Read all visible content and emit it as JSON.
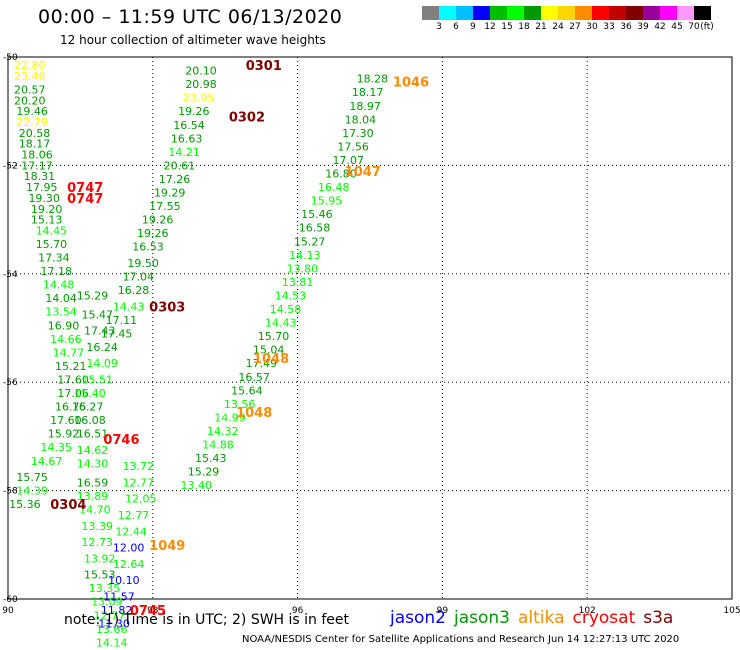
{
  "header": {
    "title": "00:00 – 11:59 UTC 06/13/2020",
    "subtitle": "12 hour collection of altimeter wave heights"
  },
  "colorbar": {
    "colors": [
      "#808080",
      "#00ffff",
      "#00bfff",
      "#0000ff",
      "#00bf00",
      "#00ff00",
      "#009900",
      "#ffff00",
      "#ffd700",
      "#ff8c00",
      "#ff0000",
      "#bf0000",
      "#800000",
      "#990099",
      "#ff00ff",
      "#ff99ff",
      "#000000"
    ],
    "labels": [
      "3",
      "6",
      "9",
      "12",
      "15",
      "18",
      "21",
      "24",
      "27",
      "30",
      "33",
      "36",
      "39",
      "42",
      "45",
      "70",
      "(ft)"
    ]
  },
  "footer": {
    "note": "note: 1) Time is in UTC; 2) SWH is in feet",
    "credit": "NOAA/NESDIS Center for Satellite Applications and Research    Jun 14 12:27:13 UTC 2020"
  },
  "legend": [
    {
      "name": "jason2",
      "color": "#0000ff"
    },
    {
      "name": "jason3",
      "color": "#009900"
    },
    {
      "name": "altika",
      "color": "#ff8c00"
    },
    {
      "name": "cryosat",
      "color": "#ff0000"
    },
    {
      "name": "s3a",
      "color": "#800000"
    }
  ],
  "chart_data": {
    "type": "scatter",
    "xlim": [
      90,
      105
    ],
    "ylim": [
      -60,
      -50
    ],
    "x_ticks": [
      "90",
      "93",
      "96",
      "99",
      "102",
      "105"
    ],
    "y_ticks": [
      "-50",
      "-52",
      "-54",
      "-56",
      "-58",
      "-60"
    ],
    "grid": true,
    "wave_heights": [
      {
        "x": 90.45,
        "y": -50.15,
        "v": "22.80",
        "c": "#ffff00"
      },
      {
        "x": 90.45,
        "y": -50.35,
        "v": "23.46",
        "c": "#ffff00"
      },
      {
        "x": 90.45,
        "y": -50.6,
        "v": "20.57",
        "c": "#009900"
      },
      {
        "x": 90.45,
        "y": -50.8,
        "v": "20.20",
        "c": "#009900"
      },
      {
        "x": 90.5,
        "y": -51.0,
        "v": "19.46",
        "c": "#009900"
      },
      {
        "x": 90.5,
        "y": -51.2,
        "v": "22.79",
        "c": "#ffff00"
      },
      {
        "x": 90.55,
        "y": -51.4,
        "v": "20.58",
        "c": "#009900"
      },
      {
        "x": 90.55,
        "y": -51.6,
        "v": "18.17",
        "c": "#009900"
      },
      {
        "x": 90.6,
        "y": -51.8,
        "v": "18.06",
        "c": "#009900"
      },
      {
        "x": 90.6,
        "y": -52.0,
        "v": "17.17",
        "c": "#009900"
      },
      {
        "x": 90.65,
        "y": -52.2,
        "v": "18.31",
        "c": "#009900"
      },
      {
        "x": 90.7,
        "y": -52.4,
        "v": "17.95",
        "c": "#009900"
      },
      {
        "x": 90.75,
        "y": -52.6,
        "v": "19.30",
        "c": "#009900"
      },
      {
        "x": 90.8,
        "y": -52.8,
        "v": "19.20",
        "c": "#009900"
      },
      {
        "x": 90.8,
        "y": -53.0,
        "v": "15.13",
        "c": "#009900"
      },
      {
        "x": 90.9,
        "y": -53.2,
        "v": "14.45",
        "c": "#00ff00"
      },
      {
        "x": 90.9,
        "y": -53.45,
        "v": "15.70",
        "c": "#009900"
      },
      {
        "x": 90.95,
        "y": -53.7,
        "v": "17.34",
        "c": "#009900"
      },
      {
        "x": 91.0,
        "y": -53.95,
        "v": "17.18",
        "c": "#009900"
      },
      {
        "x": 91.05,
        "y": -54.2,
        "v": "14.48",
        "c": "#00ff00"
      },
      {
        "x": 91.1,
        "y": -54.45,
        "v": "14.04",
        "c": "#009900"
      },
      {
        "x": 91.1,
        "y": -54.7,
        "v": "13.54",
        "c": "#00ff00"
      },
      {
        "x": 91.15,
        "y": -54.95,
        "v": "16.90",
        "c": "#009900"
      },
      {
        "x": 91.2,
        "y": -55.2,
        "v": "14.66",
        "c": "#00ff00"
      },
      {
        "x": 91.25,
        "y": -55.45,
        "v": "14.77",
        "c": "#00ff00"
      },
      {
        "x": 91.3,
        "y": -55.7,
        "v": "15.21",
        "c": "#009900"
      },
      {
        "x": 91.35,
        "y": -55.95,
        "v": "17.60",
        "c": "#009900"
      },
      {
        "x": 91.35,
        "y": -56.2,
        "v": "17.06",
        "c": "#009900"
      },
      {
        "x": 91.3,
        "y": -56.45,
        "v": "16.75",
        "c": "#009900"
      },
      {
        "x": 91.2,
        "y": -56.7,
        "v": "17.60",
        "c": "#009900"
      },
      {
        "x": 91.15,
        "y": -56.95,
        "v": "15.92",
        "c": "#009900"
      },
      {
        "x": 91.0,
        "y": -57.2,
        "v": "14.35",
        "c": "#00ff00"
      },
      {
        "x": 90.8,
        "y": -57.45,
        "v": "14.67",
        "c": "#00ff00"
      },
      {
        "x": 90.5,
        "y": -57.75,
        "v": "15.75",
        "c": "#009900"
      },
      {
        "x": 90.5,
        "y": -58.0,
        "v": "14.39",
        "c": "#00ff00"
      },
      {
        "x": 90.35,
        "y": -58.25,
        "v": "15.36",
        "c": "#009900"
      },
      {
        "x": 91.75,
        "y": -54.4,
        "v": "15.29",
        "c": "#009900"
      },
      {
        "x": 91.85,
        "y": -54.75,
        "v": "15.47",
        "c": "#009900"
      },
      {
        "x": 91.9,
        "y": -55.05,
        "v": "17.43",
        "c": "#009900"
      },
      {
        "x": 91.95,
        "y": -55.35,
        "v": "16.24",
        "c": "#009900"
      },
      {
        "x": 91.95,
        "y": -55.65,
        "v": "14.09",
        "c": "#00ff00"
      },
      {
        "x": 91.85,
        "y": -55.95,
        "v": "15.51",
        "c": "#00ff00"
      },
      {
        "x": 91.7,
        "y": -56.2,
        "v": "15.40",
        "c": "#00ff00"
      },
      {
        "x": 91.65,
        "y": -56.45,
        "v": "16.27",
        "c": "#009900"
      },
      {
        "x": 91.7,
        "y": -56.7,
        "v": "16.08",
        "c": "#009900"
      },
      {
        "x": 91.75,
        "y": -56.95,
        "v": "16.51",
        "c": "#009900"
      },
      {
        "x": 91.75,
        "y": -57.25,
        "v": "14.62",
        "c": "#00ff00"
      },
      {
        "x": 91.75,
        "y": -57.5,
        "v": "14.30",
        "c": "#00ff00"
      },
      {
        "x": 91.75,
        "y": -57.85,
        "v": "16.59",
        "c": "#009900"
      },
      {
        "x": 91.75,
        "y": -58.1,
        "v": "13.89",
        "c": "#00ff00"
      },
      {
        "x": 91.8,
        "y": -58.35,
        "v": "14.70",
        "c": "#00ff00"
      },
      {
        "x": 91.85,
        "y": -58.65,
        "v": "13.39",
        "c": "#00ff00"
      },
      {
        "x": 91.85,
        "y": -58.95,
        "v": "12.73",
        "c": "#00ff00"
      },
      {
        "x": 91.9,
        "y": -59.25,
        "v": "13.92",
        "c": "#00ff00"
      },
      {
        "x": 91.9,
        "y": -59.55,
        "v": "15.53",
        "c": "#009900"
      },
      {
        "x": 92.0,
        "y": -59.8,
        "v": "13.35",
        "c": "#00ff00"
      },
      {
        "x": 92.05,
        "y": -60.05,
        "v": "13.09",
        "c": "#00ff00"
      },
      {
        "x": 92.1,
        "y": -60.3,
        "v": "12.77",
        "c": "#00ff00"
      },
      {
        "x": 92.15,
        "y": -60.55,
        "v": "13.66",
        "c": "#00ff00"
      },
      {
        "x": 92.15,
        "y": -60.8,
        "v": "14.14",
        "c": "#00ff00"
      },
      {
        "x": 92.7,
        "y": -57.55,
        "v": "13.72",
        "c": "#00ff00"
      },
      {
        "x": 92.7,
        "y": -57.85,
        "v": "12.77",
        "c": "#00ff00"
      },
      {
        "x": 92.75,
        "y": -58.15,
        "v": "12.05",
        "c": "#00ff00"
      },
      {
        "x": 92.6,
        "y": -58.45,
        "v": "12.77",
        "c": "#00ff00"
      },
      {
        "x": 92.55,
        "y": -58.75,
        "v": "12.44",
        "c": "#00ff00"
      },
      {
        "x": 92.5,
        "y": -59.05,
        "v": "12.00",
        "c": "#0000ff"
      },
      {
        "x": 92.5,
        "y": -59.35,
        "v": "12.64",
        "c": "#00ff00"
      },
      {
        "x": 92.4,
        "y": -59.65,
        "v": "10.10",
        "c": "#0000ff"
      },
      {
        "x": 92.3,
        "y": -59.95,
        "v": "11.57",
        "c": "#0000ff"
      },
      {
        "x": 92.25,
        "y": -60.2,
        "v": "11.82",
        "c": "#0000ff"
      },
      {
        "x": 92.2,
        "y": -60.45,
        "v": "11.30",
        "c": "#0000ff"
      },
      {
        "x": 94.0,
        "y": -50.25,
        "v": "20.10",
        "c": "#009900"
      },
      {
        "x": 94.0,
        "y": -50.5,
        "v": "20.98",
        "c": "#009900"
      },
      {
        "x": 93.95,
        "y": -50.75,
        "v": "23.95",
        "c": "#ffff00"
      },
      {
        "x": 93.85,
        "y": -51.0,
        "v": "19.26",
        "c": "#009900"
      },
      {
        "x": 93.75,
        "y": -51.25,
        "v": "16.54",
        "c": "#009900"
      },
      {
        "x": 93.7,
        "y": -51.5,
        "v": "16.63",
        "c": "#009900"
      },
      {
        "x": 93.65,
        "y": -51.75,
        "v": "14.21",
        "c": "#00ff00"
      },
      {
        "x": 93.55,
        "y": -52.0,
        "v": "20.61",
        "c": "#009900"
      },
      {
        "x": 93.45,
        "y": -52.25,
        "v": "17.26",
        "c": "#009900"
      },
      {
        "x": 93.35,
        "y": -52.5,
        "v": "19.29",
        "c": "#009900"
      },
      {
        "x": 93.25,
        "y": -52.75,
        "v": "17.55",
        "c": "#009900"
      },
      {
        "x": 93.1,
        "y": -53.0,
        "v": "19.26",
        "c": "#009900"
      },
      {
        "x": 93.0,
        "y": -53.25,
        "v": "19.26",
        "c": "#009900"
      },
      {
        "x": 92.9,
        "y": -53.5,
        "v": "16.53",
        "c": "#009900"
      },
      {
        "x": 92.8,
        "y": -53.8,
        "v": "19.50",
        "c": "#009900"
      },
      {
        "x": 92.7,
        "y": -54.05,
        "v": "17.04",
        "c": "#009900"
      },
      {
        "x": 92.6,
        "y": -54.3,
        "v": "16.28",
        "c": "#009900"
      },
      {
        "x": 92.5,
        "y": -54.6,
        "v": "14.43",
        "c": "#00ff00"
      },
      {
        "x": 92.35,
        "y": -54.85,
        "v": "17.11",
        "c": "#009900"
      },
      {
        "x": 92.25,
        "y": -55.1,
        "v": "17.45",
        "c": "#009900"
      },
      {
        "x": 97.55,
        "y": -50.4,
        "v": "18.28",
        "c": "#009900"
      },
      {
        "x": 97.45,
        "y": -50.65,
        "v": "18.17",
        "c": "#009900"
      },
      {
        "x": 97.4,
        "y": -50.9,
        "v": "18.97",
        "c": "#009900"
      },
      {
        "x": 97.3,
        "y": -51.15,
        "v": "18.04",
        "c": "#009900"
      },
      {
        "x": 97.25,
        "y": -51.4,
        "v": "17.30",
        "c": "#009900"
      },
      {
        "x": 97.15,
        "y": -51.65,
        "v": "17.56",
        "c": "#009900"
      },
      {
        "x": 97.05,
        "y": -51.9,
        "v": "17.07",
        "c": "#009900"
      },
      {
        "x": 96.9,
        "y": -52.15,
        "v": "16.80",
        "c": "#009900"
      },
      {
        "x": 96.75,
        "y": -52.4,
        "v": "16.48",
        "c": "#00ff00"
      },
      {
        "x": 96.6,
        "y": -52.65,
        "v": "15.95",
        "c": "#00ff00"
      },
      {
        "x": 96.4,
        "y": -52.9,
        "v": "15.46",
        "c": "#009900"
      },
      {
        "x": 96.35,
        "y": -53.15,
        "v": "16.58",
        "c": "#009900"
      },
      {
        "x": 96.25,
        "y": -53.4,
        "v": "15.27",
        "c": "#009900"
      },
      {
        "x": 96.15,
        "y": -53.65,
        "v": "14.13",
        "c": "#00ff00"
      },
      {
        "x": 96.1,
        "y": -53.9,
        "v": "13.80",
        "c": "#00ff00"
      },
      {
        "x": 96.0,
        "y": -54.15,
        "v": "13.81",
        "c": "#00ff00"
      },
      {
        "x": 95.85,
        "y": -54.4,
        "v": "14.53",
        "c": "#00ff00"
      },
      {
        "x": 95.75,
        "y": -54.65,
        "v": "14.58",
        "c": "#00ff00"
      },
      {
        "x": 95.65,
        "y": -54.9,
        "v": "14.43",
        "c": "#00ff00"
      },
      {
        "x": 95.5,
        "y": -55.15,
        "v": "15.70",
        "c": "#009900"
      },
      {
        "x": 95.4,
        "y": -55.4,
        "v": "15.04",
        "c": "#009900"
      },
      {
        "x": 95.25,
        "y": -55.65,
        "v": "17.49",
        "c": "#009900"
      },
      {
        "x": 95.1,
        "y": -55.9,
        "v": "16.57",
        "c": "#009900"
      },
      {
        "x": 94.95,
        "y": -56.15,
        "v": "15.64",
        "c": "#009900"
      },
      {
        "x": 94.8,
        "y": -56.4,
        "v": "13.56",
        "c": "#00ff00"
      },
      {
        "x": 94.6,
        "y": -56.65,
        "v": "14.99",
        "c": "#00ff00"
      },
      {
        "x": 94.45,
        "y": -56.9,
        "v": "14.32",
        "c": "#00ff00"
      },
      {
        "x": 94.35,
        "y": -57.15,
        "v": "14.88",
        "c": "#00ff00"
      },
      {
        "x": 94.2,
        "y": -57.4,
        "v": "15.43",
        "c": "#009900"
      },
      {
        "x": 94.05,
        "y": -57.65,
        "v": "15.29",
        "c": "#009900"
      },
      {
        "x": 93.9,
        "y": -57.9,
        "v": "13.40",
        "c": "#00ff00"
      }
    ],
    "orbit_labels": [
      {
        "x": 95.3,
        "y": -50.15,
        "v": "0301",
        "c": "#800000"
      },
      {
        "x": 94.95,
        "y": -51.1,
        "v": "0302",
        "c": "#800000"
      },
      {
        "x": 93.3,
        "y": -54.6,
        "v": "0303",
        "c": "#800000"
      },
      {
        "x": 91.25,
        "y": -58.25,
        "v": "0304",
        "c": "#800000"
      },
      {
        "x": 92.9,
        "y": -60.2,
        "v": "0745",
        "c": "#ff0000"
      },
      {
        "x": 92.35,
        "y": -57.05,
        "v": "0746",
        "c": "#ff0000"
      },
      {
        "x": 91.6,
        "y": -52.4,
        "v": "0747",
        "c": "#ff0000"
      },
      {
        "x": 91.6,
        "y": -52.6,
        "v": "0747",
        "c": "#ff0000"
      },
      {
        "x": 98.35,
        "y": -50.45,
        "v": "1046",
        "c": "#ff8c00"
      },
      {
        "x": 97.35,
        "y": -52.1,
        "v": "1047",
        "c": "#ff8c00"
      },
      {
        "x": 95.45,
        "y": -55.55,
        "v": "1048",
        "c": "#ff8c00"
      },
      {
        "x": 95.1,
        "y": -56.55,
        "v": "1048",
        "c": "#ff8c00"
      },
      {
        "x": 93.3,
        "y": -59.0,
        "v": "1049",
        "c": "#ff8c00"
      }
    ]
  }
}
